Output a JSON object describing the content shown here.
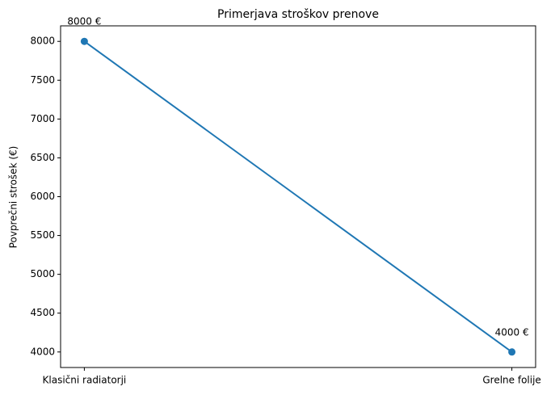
{
  "chart_data": {
    "type": "line",
    "title": "Primerjava stroškov prenove",
    "ylabel": "Povprečni strošek (€)",
    "categories": [
      "Klasični radiatorji",
      "Grelne folije"
    ],
    "values": [
      8000,
      4000
    ],
    "value_labels": [
      "8000 €",
      "4000 €"
    ],
    "color": "#1f77b4",
    "ylim": [
      3800,
      8200
    ],
    "yticks": [
      4000,
      4500,
      5000,
      5500,
      6000,
      6500,
      7000,
      7500,
      8000
    ]
  }
}
